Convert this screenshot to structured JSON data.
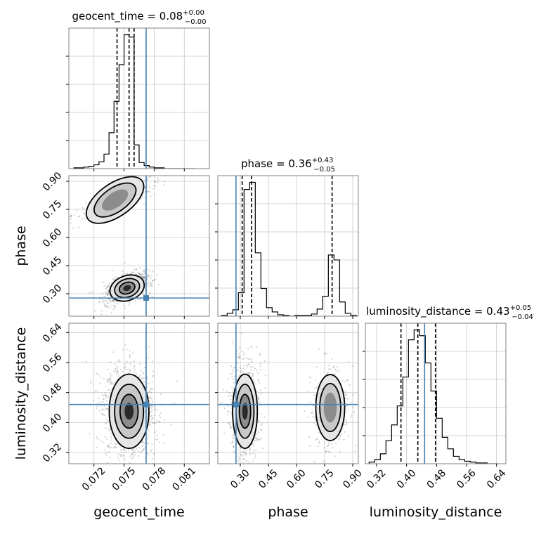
{
  "chart_data": {
    "type": "corner",
    "parameters": [
      "geocent_time",
      "phase",
      "luminosity_distance"
    ],
    "axis_labels": [
      "geocent_time",
      "phase",
      "luminosity_distance"
    ],
    "titles": [
      {
        "name": "geocent_time",
        "value": "0.08",
        "plus": "+0.00",
        "minus": "−0.00"
      },
      {
        "name": "phase",
        "value": "0.36",
        "plus": "+0.43",
        "minus": "−0.05"
      },
      {
        "name": "luminosity_distance",
        "value": "0.43",
        "plus": "+0.05",
        "minus": "−0.04"
      }
    ],
    "ranges": [
      [
        0.0695,
        0.0835
      ],
      [
        0.18,
        0.93
      ],
      [
        0.29,
        0.665
      ]
    ],
    "ticks": [
      {
        "values": [
          0.072,
          0.075,
          0.078,
          0.081
        ],
        "labels": [
          "0.072",
          "0.075",
          "0.078",
          "0.081"
        ]
      },
      {
        "values": [
          0.3,
          0.45,
          0.6,
          0.75,
          0.9
        ],
        "labels": [
          "0.30",
          "0.45",
          "0.60",
          "0.75",
          "0.90"
        ]
      },
      {
        "values": [
          0.32,
          0.4,
          0.48,
          0.56,
          0.64
        ],
        "labels": [
          "0.32",
          "0.40",
          "0.48",
          "0.56",
          "0.64"
        ]
      }
    ],
    "truths": [
      0.0772,
      0.277,
      0.448
    ],
    "quantiles": [
      [
        0.0743,
        0.0755,
        0.076
      ],
      [
        0.31,
        0.36,
        0.79
      ],
      [
        0.385,
        0.43,
        0.477
      ]
    ],
    "hist_1d": [
      {
        "bin_edges": [
          0.07,
          0.0705,
          0.071,
          0.0715,
          0.072,
          0.0725,
          0.073,
          0.0735,
          0.074,
          0.0745,
          0.075,
          0.0755,
          0.076,
          0.0765,
          0.077,
          0.0775,
          0.078,
          0.0785,
          0.079,
          0.0795,
          0.08,
          0.0805,
          0.081,
          0.0815,
          0.082
        ],
        "counts": [
          1,
          1,
          2,
          3,
          5,
          9,
          19,
          47,
          88,
          136,
          175,
          172,
          31,
          8,
          4,
          2,
          1,
          1,
          0,
          0,
          0,
          0,
          0,
          0
        ]
      },
      {
        "bin_edges": [
          0.2,
          0.23,
          0.26,
          0.29,
          0.32,
          0.35,
          0.38,
          0.41,
          0.44,
          0.47,
          0.5,
          0.53,
          0.56,
          0.59,
          0.62,
          0.65,
          0.68,
          0.71,
          0.74,
          0.77,
          0.8,
          0.83,
          0.86,
          0.89,
          0.92
        ],
        "counts": [
          1,
          4,
          9,
          33,
          178,
          188,
          89,
          39,
          12,
          6,
          2,
          1,
          0,
          1,
          1,
          1,
          3,
          10,
          28,
          86,
          79,
          20,
          4,
          1
        ]
      },
      {
        "bin_edges": [
          0.3,
          0.315,
          0.33,
          0.345,
          0.36,
          0.375,
          0.39,
          0.405,
          0.42,
          0.435,
          0.45,
          0.465,
          0.48,
          0.495,
          0.51,
          0.525,
          0.54,
          0.555,
          0.57,
          0.585,
          0.6,
          0.615,
          0.63,
          0.645
        ],
        "counts": [
          2,
          5,
          12,
          28,
          47,
          70,
          105,
          150,
          162,
          155,
          122,
          88,
          55,
          32,
          18,
          9,
          5,
          3,
          2,
          1,
          1,
          0,
          0
        ]
      }
    ],
    "grid": true
  }
}
